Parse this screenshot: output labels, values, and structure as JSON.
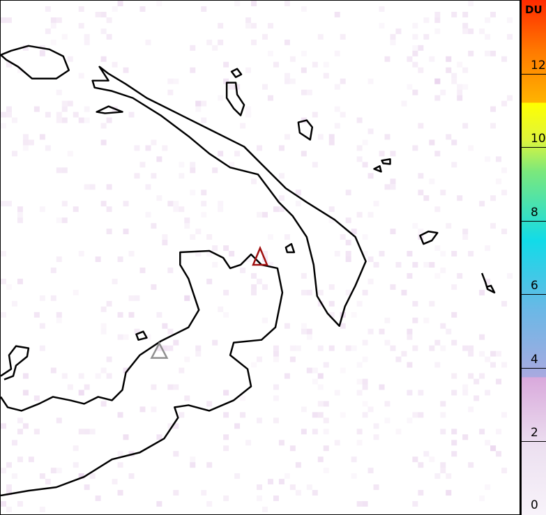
{
  "colorbar": {
    "unit": "DU",
    "ticks": [
      "0",
      "2",
      "4",
      "6",
      "8",
      "10",
      "12"
    ],
    "range": [
      0,
      14
    ]
  },
  "markers": [
    {
      "type": "triangle",
      "color": "#a01010"
    },
    {
      "type": "triangle",
      "color": "#909090"
    }
  ],
  "colors": {
    "coastline": "#000000",
    "background_signal": "#e8d0ec"
  }
}
